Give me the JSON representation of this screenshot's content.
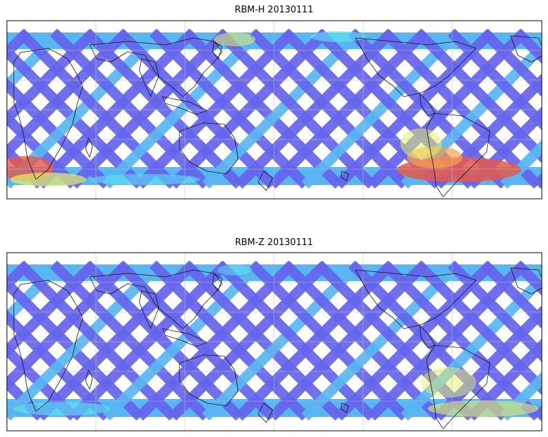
{
  "panels": [
    {
      "title": "RBM-H 20130111",
      "variant": "high"
    },
    {
      "title": "RBM-Z 20130111",
      "variant": "low"
    }
  ],
  "colors": {
    "track_base": "#6464ee",
    "track_light": "#58b6f2",
    "cyan": "#5ee8f2",
    "yellow": "#e6f06a",
    "orange": "#f6a050",
    "red": "#e8584a",
    "frame": "#000000",
    "grid": "#bdbdbd"
  }
}
